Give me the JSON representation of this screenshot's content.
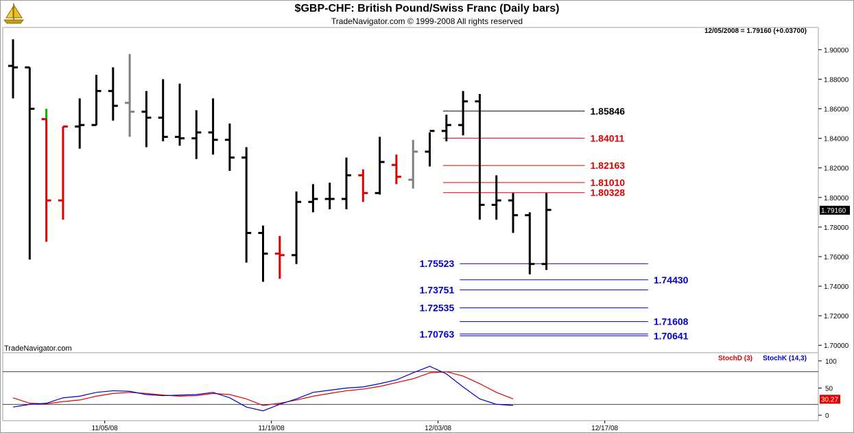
{
  "header": {
    "title": "$GBP-CHF:  British Pound/Swiss Franc  (Daily bars)",
    "subtitle": "TradeNavigator.com © 1999-2008 All rights reserved",
    "quote": "12/05/2008 = 1.79160 (+0.03700)",
    "watermark": "TradeNavigator.com"
  },
  "chart_data": [
    {
      "type": "ohlc",
      "title": "$GBP-CHF:  British Pound/Swiss Franc  (Daily bars)",
      "ylim": [
        1.695,
        1.915
      ],
      "yticks": [
        1.7,
        1.72,
        1.74,
        1.76,
        1.78,
        1.8,
        1.82,
        1.84,
        1.86,
        1.88,
        1.9
      ],
      "ytick_labels": [
        "1.70000",
        "1.72000",
        "1.74000",
        "1.76000",
        "1.78000",
        "1.80000",
        "1.82000",
        "1.84000",
        "1.86000",
        "1.88000",
        "1.90000"
      ],
      "last_price_label": "1.79160",
      "x_labels": [
        "11/05/08",
        "11/19/08",
        "12/03/08",
        "12/17/08"
      ],
      "x_label_positions": [
        5.5,
        15.5,
        25.5,
        35.5
      ],
      "bars": [
        {
          "o": 1.889,
          "h": 1.907,
          "l": 1.867,
          "c": 1.888,
          "color": "#000000"
        },
        {
          "o": 1.888,
          "h": 1.888,
          "l": 1.758,
          "c": 1.86,
          "color": "#000000"
        },
        {
          "o": 1.853,
          "h": 1.86,
          "l": 1.77,
          "c": 1.798,
          "color": "#e00000",
          "high_color": "#00c000"
        },
        {
          "o": 1.798,
          "h": 1.848,
          "l": 1.785,
          "c": 1.848,
          "color": "#e00000"
        },
        {
          "o": 1.848,
          "h": 1.867,
          "l": 1.833,
          "c": 1.849,
          "color": "#000000"
        },
        {
          "o": 1.849,
          "h": 1.883,
          "l": 1.849,
          "c": 1.872,
          "color": "#000000"
        },
        {
          "o": 1.872,
          "h": 1.888,
          "l": 1.852,
          "c": 1.862,
          "color": "#000000"
        },
        {
          "o": 1.864,
          "h": 1.897,
          "l": 1.841,
          "c": 1.858,
          "color": "#808080"
        },
        {
          "o": 1.858,
          "h": 1.872,
          "l": 1.834,
          "c": 1.854,
          "color": "#000000"
        },
        {
          "o": 1.854,
          "h": 1.88,
          "l": 1.838,
          "c": 1.841,
          "color": "#000000"
        },
        {
          "o": 1.841,
          "h": 1.877,
          "l": 1.835,
          "c": 1.84,
          "color": "#000000"
        },
        {
          "o": 1.84,
          "h": 1.859,
          "l": 1.826,
          "c": 1.844,
          "color": "#000000"
        },
        {
          "o": 1.844,
          "h": 1.867,
          "l": 1.829,
          "c": 1.839,
          "color": "#000000"
        },
        {
          "o": 1.839,
          "h": 1.85,
          "l": 1.818,
          "c": 1.827,
          "color": "#000000"
        },
        {
          "o": 1.827,
          "h": 1.834,
          "l": 1.756,
          "c": 1.776,
          "color": "#000000"
        },
        {
          "o": 1.776,
          "h": 1.781,
          "l": 1.743,
          "c": 1.762,
          "color": "#000000"
        },
        {
          "o": 1.762,
          "h": 1.774,
          "l": 1.745,
          "c": 1.761,
          "color": "#e00000"
        },
        {
          "o": 1.761,
          "h": 1.804,
          "l": 1.755,
          "c": 1.797,
          "color": "#000000"
        },
        {
          "o": 1.797,
          "h": 1.809,
          "l": 1.79,
          "c": 1.799,
          "color": "#000000"
        },
        {
          "o": 1.799,
          "h": 1.81,
          "l": 1.792,
          "c": 1.799,
          "color": "#000000"
        },
        {
          "o": 1.799,
          "h": 1.827,
          "l": 1.792,
          "c": 1.815,
          "color": "#000000"
        },
        {
          "o": 1.815,
          "h": 1.819,
          "l": 1.797,
          "c": 1.803,
          "color": "#e00000"
        },
        {
          "o": 1.803,
          "h": 1.841,
          "l": 1.802,
          "c": 1.824,
          "color": "#000000"
        },
        {
          "o": 1.822,
          "h": 1.829,
          "l": 1.809,
          "c": 1.814,
          "color": "#e00000"
        },
        {
          "o": 1.812,
          "h": 1.839,
          "l": 1.806,
          "c": 1.831,
          "color": "#808080"
        },
        {
          "o": 1.831,
          "h": 1.844,
          "l": 1.821,
          "c": 1.845,
          "color": "#000000"
        },
        {
          "o": 1.845,
          "h": 1.856,
          "l": 1.838,
          "c": 1.849,
          "color": "#000000"
        },
        {
          "o": 1.849,
          "h": 1.872,
          "l": 1.842,
          "c": 1.865,
          "color": "#000000"
        },
        {
          "o": 1.865,
          "h": 1.87,
          "l": 1.785,
          "c": 1.795,
          "color": "#000000"
        },
        {
          "o": 1.795,
          "h": 1.815,
          "l": 1.785,
          "c": 1.798,
          "color": "#000000"
        },
        {
          "o": 1.798,
          "h": 1.803,
          "l": 1.776,
          "c": 1.788,
          "color": "#000000"
        },
        {
          "o": 1.788,
          "h": 1.79,
          "l": 1.748,
          "c": 1.755,
          "color": "#000000"
        },
        {
          "o": 1.755,
          "h": 1.803,
          "l": 1.751,
          "c": 1.7916,
          "color": "#000000"
        }
      ],
      "levels": [
        {
          "value": 1.85846,
          "label": "1.85846",
          "color": "#000000",
          "x0": 25.8,
          "x1": 34.3,
          "label_side": "right"
        },
        {
          "value": 1.84011,
          "label": "1.84011",
          "color": "#e00000",
          "x0": 25.8,
          "x1": 34.3,
          "label_side": "right"
        },
        {
          "value": 1.82163,
          "label": "1.82163",
          "color": "#e00000",
          "x0": 25.8,
          "x1": 34.3,
          "label_side": "right"
        },
        {
          "value": 1.8101,
          "label": "1.81010",
          "color": "#e00000",
          "x0": 25.8,
          "x1": 34.3,
          "label_side": "right"
        },
        {
          "value": 1.80328,
          "label": "1.80328",
          "color": "#e00000",
          "x0": 25.8,
          "x1": 34.3,
          "label_side": "right"
        },
        {
          "value": 1.75523,
          "label": "1.75523",
          "color": "#0000cc",
          "x0": 26.8,
          "x1": 38.1,
          "label_side": "left"
        },
        {
          "value": 1.7443,
          "label": "1.74430",
          "color": "#0000cc",
          "x0": 26.8,
          "x1": 38.1,
          "label_side": "right"
        },
        {
          "value": 1.73751,
          "label": "1.73751",
          "color": "#0000cc",
          "x0": 26.8,
          "x1": 38.1,
          "label_side": "left"
        },
        {
          "value": 1.72535,
          "label": "1.72535",
          "color": "#0000cc",
          "x0": 26.8,
          "x1": 38.1,
          "label_side": "left"
        },
        {
          "value": 1.71608,
          "label": "1.71608",
          "color": "#0000cc",
          "x0": 26.8,
          "x1": 38.1,
          "label_side": "right"
        },
        {
          "value": 1.70763,
          "label": "1.70763",
          "color": "#0000cc",
          "x0": 26.8,
          "x1": 38.1,
          "label_side": "left"
        },
        {
          "value": 1.70641,
          "label": "1.70641",
          "color": "#0000cc",
          "x0": 26.8,
          "x1": 38.1,
          "label_side": "right"
        }
      ]
    },
    {
      "type": "line",
      "title": "",
      "ylim": [
        -10,
        115
      ],
      "yticks": [
        0,
        50,
        100
      ],
      "ytick_labels": [
        "0",
        "50",
        "100"
      ],
      "reference_lines": [
        20,
        80
      ],
      "last_value_label": "30.27",
      "series": [
        {
          "name": "StochD (3)",
          "color": "#e00000",
          "values": [
            32,
            22,
            21,
            25,
            28,
            35,
            40,
            42,
            40,
            37,
            35,
            36,
            40,
            38,
            30,
            18,
            22,
            28,
            35,
            40,
            45,
            48,
            53,
            60,
            67,
            78,
            80,
            72,
            58,
            42,
            30
          ]
        },
        {
          "name": "StochK (14,3)",
          "color": "#0000cc",
          "values": [
            15,
            20,
            22,
            32,
            35,
            42,
            45,
            44,
            38,
            36,
            37,
            38,
            42,
            32,
            15,
            8,
            20,
            30,
            42,
            46,
            50,
            52,
            58,
            65,
            78,
            90,
            76,
            52,
            30,
            20,
            18
          ]
        }
      ]
    }
  ]
}
